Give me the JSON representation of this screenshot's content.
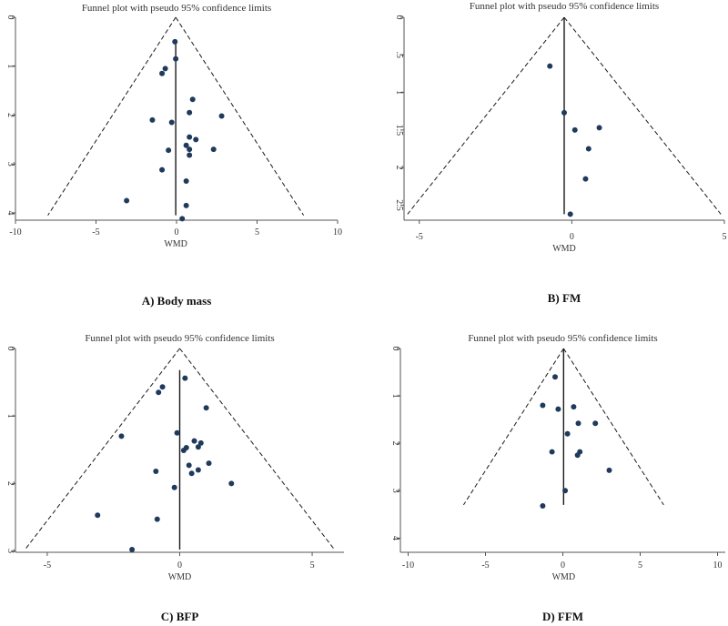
{
  "chart_data": [
    {
      "type": "scatter",
      "subtype": "funnel",
      "title": "Funnel plot with pseudo 95% confidence limits",
      "caption": "A) Body mass",
      "xlabel": "WMD",
      "ylabel": "",
      "xlim": [
        -10,
        10
      ],
      "ylim": [
        0,
        4.15
      ],
      "y_reversed": true,
      "xticks": [
        -10,
        -5,
        0,
        5,
        10
      ],
      "xtick_labels": [
        "-10",
        "-5",
        "0",
        "5",
        "10"
      ],
      "yticks": [
        0,
        1,
        2,
        3,
        4
      ],
      "ytick_labels": [
        "0",
        "1",
        "2",
        "3",
        "4"
      ],
      "pooled_effect": -0.05,
      "funnel_apex": [
        -0.05,
        0
      ],
      "funnel_base_y": 4.05,
      "funnel_ci_factor": 1.96,
      "line_top_y": 0.45,
      "line_bottom_y": 4.05,
      "points": [
        {
          "x": -0.1,
          "y": 0.5
        },
        {
          "x": -0.05,
          "y": 0.85
        },
        {
          "x": -0.7,
          "y": 1.05
        },
        {
          "x": -0.9,
          "y": 1.15
        },
        {
          "x": 1.0,
          "y": 1.68
        },
        {
          "x": 0.8,
          "y": 1.95
        },
        {
          "x": 2.8,
          "y": 2.02
        },
        {
          "x": -1.5,
          "y": 2.1
        },
        {
          "x": -0.3,
          "y": 2.15
        },
        {
          "x": 0.8,
          "y": 2.45
        },
        {
          "x": 1.2,
          "y": 2.5
        },
        {
          "x": 0.6,
          "y": 2.62
        },
        {
          "x": 0.8,
          "y": 2.7
        },
        {
          "x": 2.3,
          "y": 2.7
        },
        {
          "x": -0.5,
          "y": 2.72
        },
        {
          "x": 0.8,
          "y": 2.82
        },
        {
          "x": -0.9,
          "y": 3.12
        },
        {
          "x": 0.6,
          "y": 3.35
        },
        {
          "x": -3.1,
          "y": 3.75
        },
        {
          "x": 0.6,
          "y": 3.85
        },
        {
          "x": 0.35,
          "y": 4.12
        }
      ]
    },
    {
      "type": "scatter",
      "subtype": "funnel",
      "title": "Funnel plot with pseudo 95% confidence limits",
      "caption": "B) FM",
      "xlabel": "WMD",
      "ylabel": "",
      "xlim": [
        -5.5,
        5
      ],
      "ylim": [
        0,
        2.7
      ],
      "y_reversed": true,
      "xticks": [
        -5,
        0,
        5
      ],
      "xtick_labels": [
        "-5",
        "0",
        "5"
      ],
      "yticks": [
        0,
        0.5,
        1,
        1.5,
        2,
        2.5
      ],
      "ytick_labels": [
        "0",
        ".5",
        "1",
        "1.5",
        "2",
        "2.5"
      ],
      "pooled_effect": -0.25,
      "funnel_apex": [
        -0.25,
        0
      ],
      "funnel_base_y": 2.62,
      "funnel_ci_factor": 1.96,
      "line_top_y": 0.0,
      "line_bottom_y": 2.62,
      "points": [
        {
          "x": -0.72,
          "y": 0.65
        },
        {
          "x": -0.25,
          "y": 1.27
        },
        {
          "x": 0.9,
          "y": 1.47
        },
        {
          "x": 0.1,
          "y": 1.5
        },
        {
          "x": 0.55,
          "y": 1.75
        },
        {
          "x": 0.45,
          "y": 2.15
        },
        {
          "x": -0.05,
          "y": 2.62
        }
      ]
    },
    {
      "type": "scatter",
      "subtype": "funnel",
      "title": "Funnel plot with pseudo 95% confidence limits",
      "caption": "C) BFP",
      "xlabel": "WMD",
      "ylabel": "",
      "xlim": [
        -6.2,
        6.2
      ],
      "ylim": [
        0,
        3.02
      ],
      "y_reversed": true,
      "xticks": [
        -5,
        0,
        5
      ],
      "xtick_labels": [
        "-5",
        "0",
        "5"
      ],
      "yticks": [
        0,
        1,
        2,
        3
      ],
      "ytick_labels": [
        "0",
        "1",
        "2",
        "3"
      ],
      "pooled_effect": 0.0,
      "funnel_apex": [
        0.0,
        0
      ],
      "funnel_base_y": 2.98,
      "funnel_ci_factor": 1.96,
      "line_top_y": 0.32,
      "line_bottom_y": 2.98,
      "points": [
        {
          "x": 0.2,
          "y": 0.44
        },
        {
          "x": -0.65,
          "y": 0.57
        },
        {
          "x": -0.8,
          "y": 0.65
        },
        {
          "x": 1.0,
          "y": 0.88
        },
        {
          "x": -2.2,
          "y": 1.3
        },
        {
          "x": -0.1,
          "y": 1.25
        },
        {
          "x": 0.55,
          "y": 1.37
        },
        {
          "x": 0.8,
          "y": 1.4
        },
        {
          "x": 0.25,
          "y": 1.47
        },
        {
          "x": 0.15,
          "y": 1.51
        },
        {
          "x": 0.7,
          "y": 1.46
        },
        {
          "x": 1.1,
          "y": 1.7
        },
        {
          "x": 0.35,
          "y": 1.73
        },
        {
          "x": 0.7,
          "y": 1.8
        },
        {
          "x": 0.45,
          "y": 1.85
        },
        {
          "x": -0.9,
          "y": 1.82
        },
        {
          "x": 1.95,
          "y": 2.0
        },
        {
          "x": -0.2,
          "y": 2.06
        },
        {
          "x": -3.1,
          "y": 2.47
        },
        {
          "x": -0.85,
          "y": 2.53
        },
        {
          "x": -1.8,
          "y": 2.98
        }
      ]
    },
    {
      "type": "scatter",
      "subtype": "funnel",
      "title": "Funnel plot with pseudo 95% confidence limits",
      "caption": "D) FFM",
      "xlabel": "WMD",
      "ylabel": "",
      "xlim": [
        -10.5,
        10.5
      ],
      "ylim": [
        0,
        4.3
      ],
      "y_reversed": true,
      "xticks": [
        -10,
        -5,
        0,
        5,
        10
      ],
      "xtick_labels": [
        "-10",
        "-5",
        "0",
        "5",
        "10"
      ],
      "yticks": [
        0,
        1,
        2,
        3,
        4
      ],
      "ytick_labels": [
        "0",
        "1",
        "2",
        "3",
        "4"
      ],
      "pooled_effect": 0.05,
      "funnel_apex": [
        0.05,
        0
      ],
      "funnel_base_y": 3.3,
      "funnel_ci_factor": 1.96,
      "line_top_y": 0.0,
      "line_bottom_y": 3.3,
      "points": [
        {
          "x": -0.5,
          "y": 0.6
        },
        {
          "x": -1.3,
          "y": 1.2
        },
        {
          "x": -0.3,
          "y": 1.28
        },
        {
          "x": 0.7,
          "y": 1.23
        },
        {
          "x": 1.0,
          "y": 1.58
        },
        {
          "x": 2.1,
          "y": 1.58
        },
        {
          "x": 0.3,
          "y": 1.8
        },
        {
          "x": -0.7,
          "y": 2.18
        },
        {
          "x": 1.1,
          "y": 2.18
        },
        {
          "x": 0.95,
          "y": 2.25
        },
        {
          "x": 3.0,
          "y": 2.57
        },
        {
          "x": 0.15,
          "y": 3.0
        },
        {
          "x": -1.3,
          "y": 3.32
        }
      ]
    }
  ],
  "colors": {
    "point": "#1f3a5c",
    "line": "#1a1a1a",
    "axis": "#555555",
    "text": "#333333",
    "caption": "#111111"
  }
}
